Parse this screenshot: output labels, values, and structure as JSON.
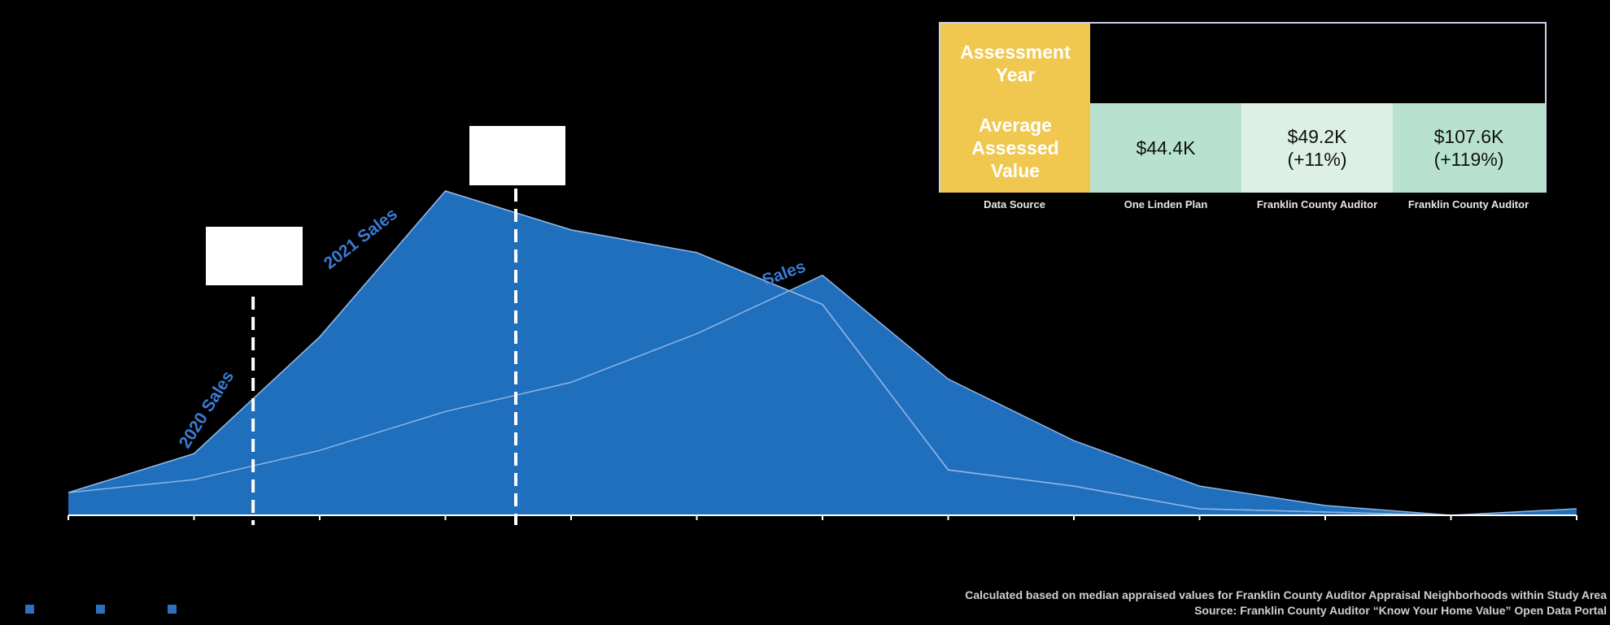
{
  "colors": {
    "background": "#000000",
    "area": "#1f6fbd",
    "area_outline": "#8fb4e4",
    "label": "#3a7bd5",
    "header": "#f0c84f",
    "value_light": "#b8e2cf",
    "value_lighter": "#dcf0e6",
    "table_border": "#c7d2ea"
  },
  "table": {
    "header_year": "Assessment Year",
    "header_value": "Average Assessed Value",
    "values": [
      "$44.4K",
      "$49.2K\n(+11%)",
      "$107.6K\n(+119%)"
    ],
    "source_label": "Data Source",
    "sources": [
      "One Linden Plan",
      "Franklin County Auditor",
      "Franklin County Auditor"
    ]
  },
  "footnotes": {
    "line1": "Calculated based on median appraised values for Franklin County Auditor Appraisal Neighborhoods within Study Area",
    "line2": "Source: Franklin County Auditor “Know Your Home Value” Open Data Portal"
  },
  "chart_data": {
    "type": "area",
    "x": [
      0,
      1,
      2,
      3,
      4,
      5,
      6,
      7,
      8,
      9,
      10,
      11,
      12
    ],
    "ylim": [
      0,
      100
    ],
    "series": [
      {
        "name": "2020 Sales",
        "values": [
          7,
          19,
          55,
          100,
          88,
          81,
          65,
          14,
          9,
          2,
          1,
          0,
          0
        ]
      },
      {
        "name": "2021 Sales",
        "values": [
          7,
          19,
          55,
          100,
          88,
          81,
          65,
          14,
          9,
          2,
          1,
          0,
          0
        ]
      },
      {
        "name": "Sales",
        "values": [
          7,
          11,
          20,
          32,
          41,
          56,
          74,
          42,
          23,
          9,
          3,
          0,
          2
        ]
      }
    ],
    "markers": [
      1.47,
      3.56
    ],
    "series_labels": [
      "2020 Sales",
      "2021 Sales",
      "Sales"
    ]
  }
}
